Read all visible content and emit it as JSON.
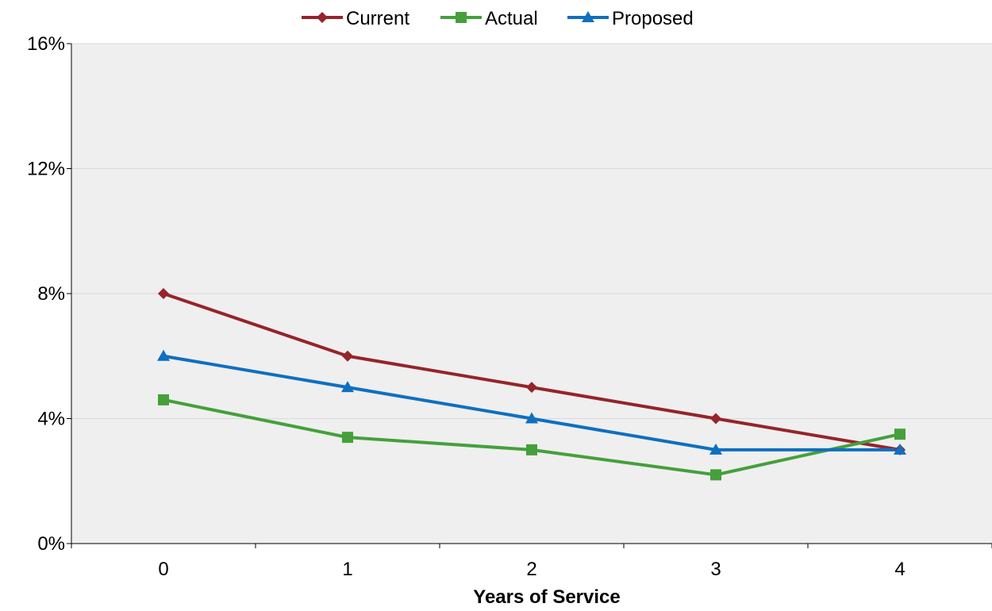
{
  "chart_data": {
    "type": "line",
    "title": "",
    "xlabel": "Years of Service",
    "ylabel": "",
    "categories": [
      "0",
      "1",
      "2",
      "3",
      "4"
    ],
    "y_tick_labels": [
      "0%",
      "4%",
      "8%",
      "12%",
      "16%"
    ],
    "y_ticks": [
      0,
      4,
      8,
      12,
      16
    ],
    "ylim": [
      0,
      16
    ],
    "grid": true,
    "legend_position": "top",
    "plot_background": "#efefef",
    "series": [
      {
        "name": "Current",
        "values": [
          8.0,
          6.0,
          5.0,
          4.0,
          3.0
        ],
        "color": "#96242a",
        "marker": "diamond"
      },
      {
        "name": "Actual",
        "values": [
          4.6,
          3.4,
          3.0,
          2.2,
          3.5
        ],
        "color": "#45a03b",
        "marker": "square"
      },
      {
        "name": "Proposed",
        "values": [
          6.0,
          5.0,
          4.0,
          3.0,
          3.0
        ],
        "color": "#0f6fc0",
        "marker": "triangle"
      }
    ]
  }
}
